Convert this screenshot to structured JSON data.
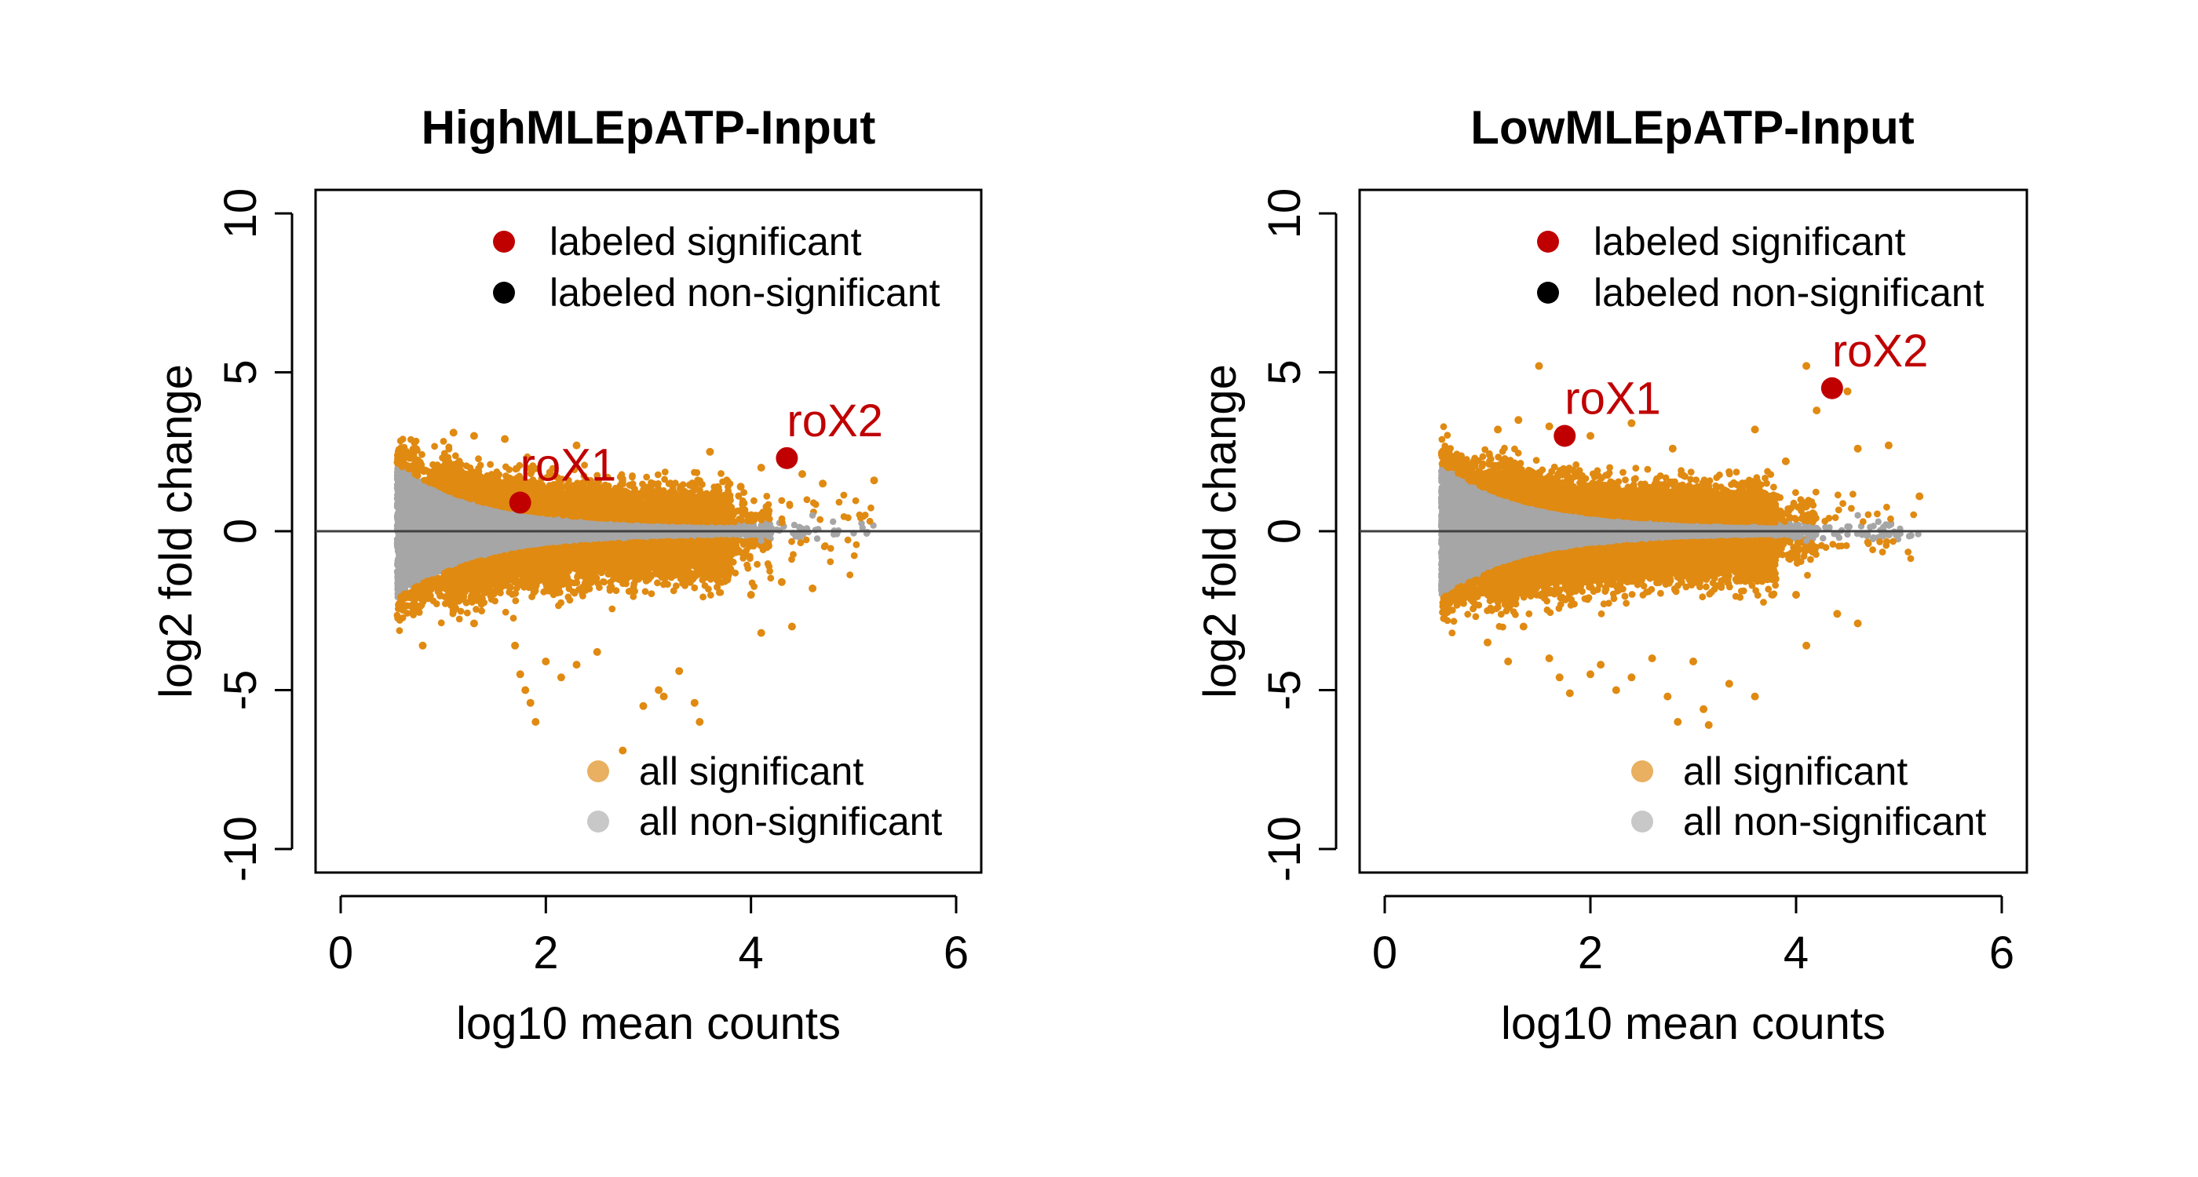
{
  "colors": {
    "significant": "#E08A12",
    "non_significant": "#A6A6A6",
    "labeled_significant": "#C00000",
    "labeled_non_significant": "#000000",
    "legend_all_significant": "#E8B060",
    "legend_all_non_significant": "#C8C8C8",
    "axis": "#000000",
    "zero_line": "#404040"
  },
  "chart_data": [
    {
      "type": "scatter",
      "title": "HighMLEpATP-Input",
      "xlabel": "log10 mean counts",
      "ylabel": "log2 fold change",
      "xlim": [
        0,
        6
      ],
      "ylim": [
        -10,
        10
      ],
      "x_ticks": [
        0,
        2,
        4,
        6
      ],
      "y_ticks": [
        -10,
        -5,
        0,
        5,
        10
      ],
      "x_tick_labels": [
        "0",
        "2",
        "4",
        "6"
      ],
      "y_tick_labels": [
        "-10",
        "-5",
        "0",
        "5",
        "10"
      ],
      "hline": 0,
      "legend_top": [
        {
          "label": "labeled significant",
          "color": "labeled_significant"
        },
        {
          "label": "labeled non-significant",
          "color": "labeled_non_significant"
        }
      ],
      "legend_bottom": [
        {
          "label": "all significant",
          "color": "legend_all_significant"
        },
        {
          "label": "all non-significant",
          "color": "legend_all_non_significant"
        }
      ],
      "cloud": {
        "x_start": 0.55,
        "x_end": 5.2,
        "density": 1.0,
        "sig_upper_max": 3.0
      },
      "outliers": [
        [
          1.1,
          3.1
        ],
        [
          1.3,
          3.0
        ],
        [
          1.6,
          2.9
        ],
        [
          2.3,
          2.7
        ],
        [
          3.6,
          2.5
        ],
        [
          4.1,
          2.0
        ],
        [
          4.5,
          1.8
        ],
        [
          4.7,
          1.5
        ],
        [
          5.2,
          1.6
        ],
        [
          3.9,
          1.4
        ],
        [
          0.8,
          -3.6
        ],
        [
          1.1,
          -2.5
        ],
        [
          1.3,
          -2.9
        ],
        [
          1.7,
          -3.6
        ],
        [
          1.75,
          -4.5
        ],
        [
          1.8,
          -5.0
        ],
        [
          1.85,
          -5.4
        ],
        [
          1.9,
          -6.0
        ],
        [
          2.0,
          -4.1
        ],
        [
          2.15,
          -4.6
        ],
        [
          2.5,
          -3.8
        ],
        [
          2.75,
          -6.9
        ],
        [
          2.95,
          -5.5
        ],
        [
          3.1,
          -5.0
        ],
        [
          3.15,
          -5.2
        ],
        [
          3.3,
          -4.4
        ],
        [
          3.45,
          -5.4
        ],
        [
          3.5,
          -6.0
        ],
        [
          2.3,
          -4.2
        ],
        [
          4.1,
          -3.2
        ],
        [
          4.4,
          -3.0
        ],
        [
          4.0,
          -2.0
        ],
        [
          4.3,
          -1.6
        ],
        [
          4.6,
          -1.8
        ],
        [
          3.8,
          -1.2
        ]
      ],
      "labeled": [
        {
          "name": "roX1",
          "x": 1.75,
          "y": 0.9,
          "significant": true
        },
        {
          "name": "roX2",
          "x": 4.35,
          "y": 2.3,
          "significant": true
        }
      ]
    },
    {
      "type": "scatter",
      "title": "LowMLEpATP-Input",
      "xlabel": "log10 mean counts",
      "ylabel": "log2 fold change",
      "xlim": [
        0,
        6
      ],
      "ylim": [
        -10,
        10
      ],
      "x_ticks": [
        0,
        2,
        4,
        6
      ],
      "y_ticks": [
        -10,
        -5,
        0,
        5,
        10
      ],
      "x_tick_labels": [
        "0",
        "2",
        "4",
        "6"
      ],
      "y_tick_labels": [
        "-10",
        "-5",
        "0",
        "5",
        "10"
      ],
      "hline": 0,
      "legend_top": [
        {
          "label": "labeled significant",
          "color": "labeled_significant"
        },
        {
          "label": "labeled non-significant",
          "color": "labeled_non_significant"
        }
      ],
      "legend_bottom": [
        {
          "label": "all significant",
          "color": "legend_all_significant"
        },
        {
          "label": "all non-significant",
          "color": "legend_all_non_significant"
        }
      ],
      "cloud": {
        "x_start": 0.55,
        "x_end": 5.2,
        "density": 1.2,
        "sig_upper_max": 3.6
      },
      "outliers": [
        [
          1.5,
          5.2
        ],
        [
          1.1,
          3.2
        ],
        [
          1.3,
          3.5
        ],
        [
          1.6,
          3.3
        ],
        [
          2.0,
          3.0
        ],
        [
          2.4,
          3.4
        ],
        [
          2.8,
          2.6
        ],
        [
          3.6,
          3.2
        ],
        [
          4.1,
          5.2
        ],
        [
          4.5,
          4.4
        ],
        [
          4.6,
          2.6
        ],
        [
          4.9,
          2.7
        ],
        [
          5.2,
          1.1
        ],
        [
          4.2,
          3.8
        ],
        [
          3.9,
          2.2
        ],
        [
          1.0,
          -3.5
        ],
        [
          1.2,
          -4.1
        ],
        [
          1.35,
          -3.0
        ],
        [
          1.6,
          -4.0
        ],
        [
          1.7,
          -4.6
        ],
        [
          1.8,
          -5.1
        ],
        [
          2.0,
          -4.5
        ],
        [
          2.1,
          -4.2
        ],
        [
          2.25,
          -5.0
        ],
        [
          2.4,
          -4.6
        ],
        [
          2.6,
          -4.0
        ],
        [
          2.75,
          -5.2
        ],
        [
          2.85,
          -6.0
        ],
        [
          3.1,
          -5.6
        ],
        [
          3.15,
          -6.1
        ],
        [
          3.35,
          -4.8
        ],
        [
          3.6,
          -5.2
        ],
        [
          3.0,
          -4.1
        ],
        [
          4.1,
          -3.6
        ],
        [
          4.4,
          -2.6
        ],
        [
          4.6,
          -2.9
        ],
        [
          4.0,
          -2.0
        ],
        [
          3.8,
          -1.5
        ]
      ],
      "labeled": [
        {
          "name": "roX1",
          "x": 1.75,
          "y": 3.0,
          "significant": true
        },
        {
          "name": "roX2",
          "x": 4.35,
          "y": 4.5,
          "significant": true
        }
      ]
    }
  ]
}
